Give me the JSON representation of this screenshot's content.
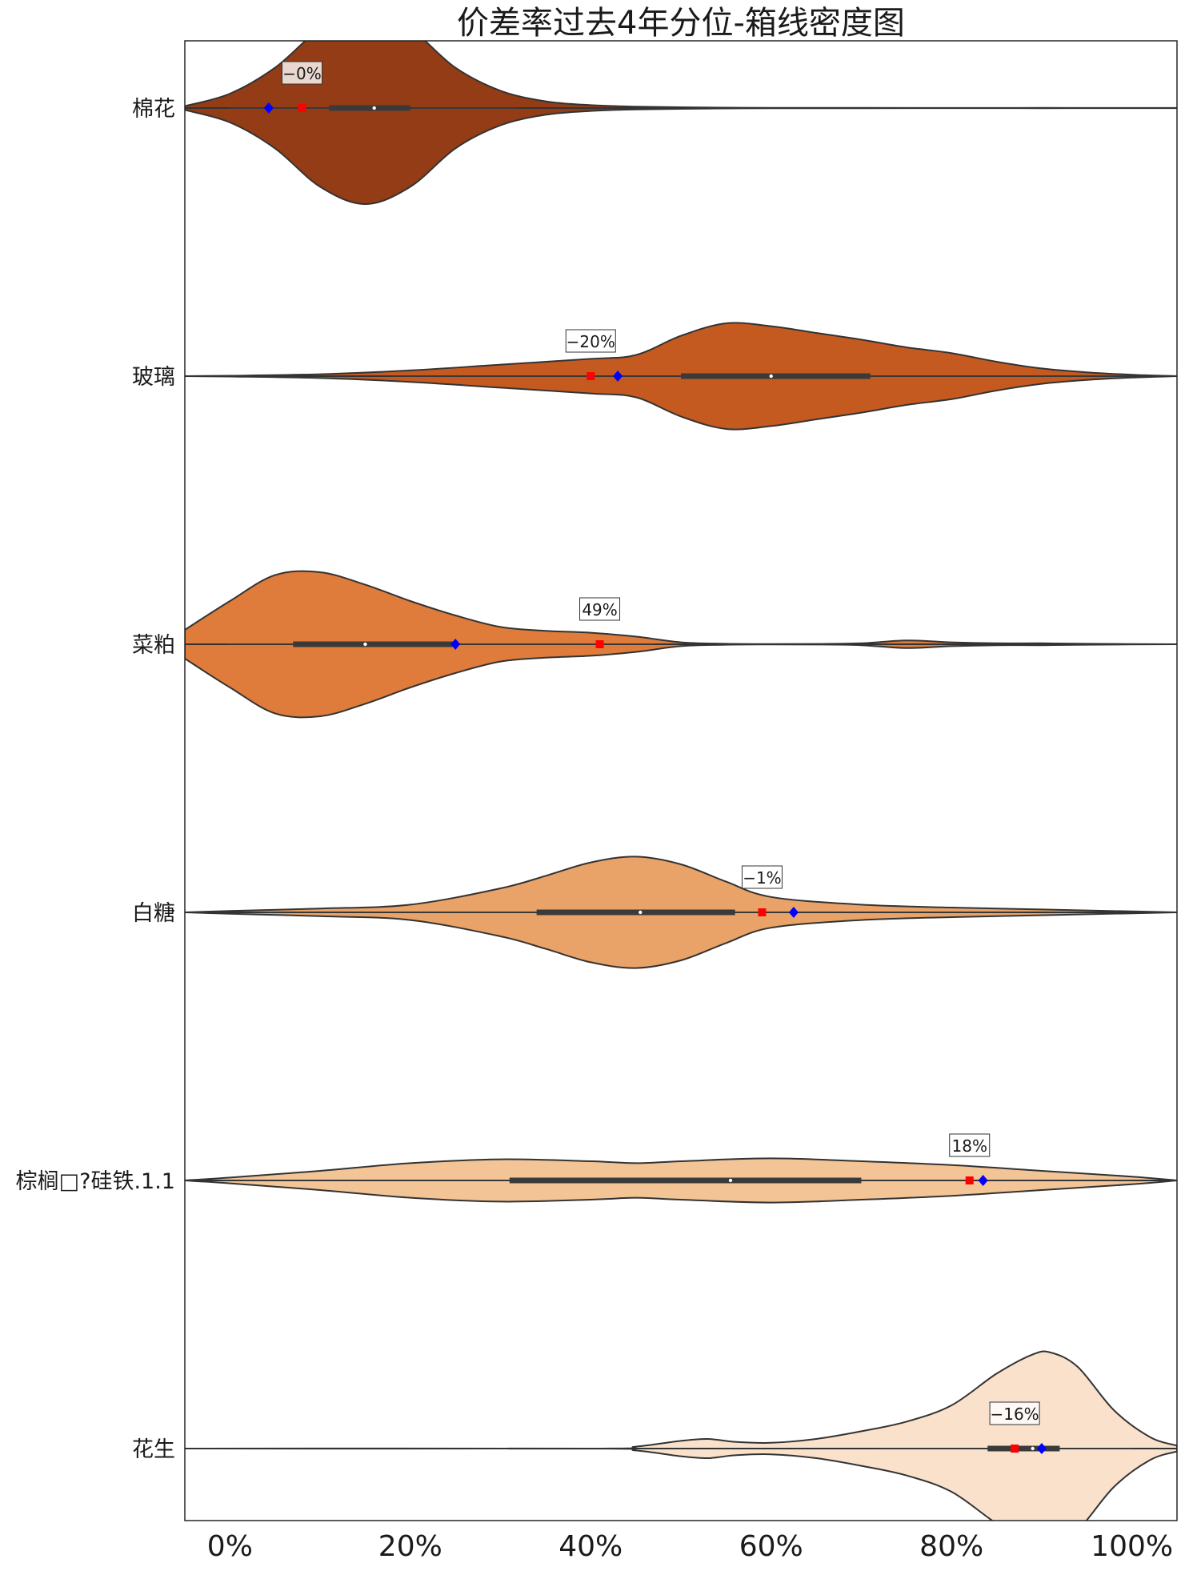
{
  "chart_data": {
    "type": "violin",
    "title": "价差率过去4年分位-箱线密度图",
    "xlabel": "",
    "ylabel": "",
    "xlim": [
      -0.05,
      1.05
    ],
    "x_ticks": [
      0,
      0.2,
      0.4,
      0.6,
      0.8,
      1.0
    ],
    "x_tick_labels": [
      "0%",
      "20%",
      "40%",
      "60%",
      "80%",
      "100%"
    ],
    "grid": false,
    "categories": [
      "棉花",
      "玻璃",
      "菜粕",
      "白糖",
      "棕榈□?硅铁.1.1",
      "花生"
    ],
    "series": [
      {
        "name": "棉花",
        "color": "#933c16",
        "density": [
          [
            -0.05,
            0.02
          ],
          [
            0.0,
            0.15
          ],
          [
            0.05,
            0.42
          ],
          [
            0.1,
            0.82
          ],
          [
            0.15,
            1.0
          ],
          [
            0.2,
            0.82
          ],
          [
            0.25,
            0.42
          ],
          [
            0.3,
            0.18
          ],
          [
            0.35,
            0.07
          ],
          [
            0.4,
            0.03
          ],
          [
            0.45,
            0.015
          ],
          [
            0.5,
            0.008
          ],
          [
            0.55,
            0.004
          ],
          [
            0.6,
            0.002
          ],
          [
            0.7,
            0.002
          ],
          [
            0.8,
            0.001
          ],
          [
            0.9,
            0.002
          ],
          [
            1.0,
            0.001
          ],
          [
            1.05,
            0.001
          ]
        ],
        "whisker": [
          0.0,
          0.32
        ],
        "box": [
          0.11,
          0.2
        ],
        "median": 0.16,
        "current": 0.08,
        "previous": 0.043,
        "annotation": "−0%"
      },
      {
        "name": "玻璃",
        "color": "#c45a20",
        "density": [
          [
            -0.05,
            0.0
          ],
          [
            0.0,
            0.004
          ],
          [
            0.1,
            0.02
          ],
          [
            0.2,
            0.06
          ],
          [
            0.3,
            0.12
          ],
          [
            0.4,
            0.18
          ],
          [
            0.45,
            0.22
          ],
          [
            0.5,
            0.42
          ],
          [
            0.55,
            0.55
          ],
          [
            0.6,
            0.52
          ],
          [
            0.65,
            0.45
          ],
          [
            0.7,
            0.38
          ],
          [
            0.75,
            0.3
          ],
          [
            0.8,
            0.24
          ],
          [
            0.85,
            0.15
          ],
          [
            0.9,
            0.08
          ],
          [
            0.95,
            0.04
          ],
          [
            1.0,
            0.015
          ],
          [
            1.05,
            0.0
          ]
        ],
        "whisker": [
          0.18,
          1.0
        ],
        "box": [
          0.5,
          0.71
        ],
        "median": 0.6,
        "current": 0.4,
        "previous": 0.43,
        "annotation": "−20%"
      },
      {
        "name": "菜粕",
        "color": "#df7c3b",
        "density": [
          [
            -0.05,
            0.15
          ],
          [
            0.0,
            0.45
          ],
          [
            0.05,
            0.72
          ],
          [
            0.1,
            0.75
          ],
          [
            0.15,
            0.62
          ],
          [
            0.2,
            0.45
          ],
          [
            0.25,
            0.3
          ],
          [
            0.3,
            0.18
          ],
          [
            0.35,
            0.14
          ],
          [
            0.4,
            0.12
          ],
          [
            0.45,
            0.08
          ],
          [
            0.5,
            0.02
          ],
          [
            0.55,
            0.005
          ],
          [
            0.6,
            0.002
          ],
          [
            0.65,
            0.003
          ],
          [
            0.7,
            0.01
          ],
          [
            0.75,
            0.04
          ],
          [
            0.8,
            0.02
          ],
          [
            0.85,
            0.01
          ],
          [
            0.9,
            0.01
          ],
          [
            0.95,
            0.005
          ],
          [
            1.05,
            0.0
          ]
        ],
        "whisker": [
          0.0,
          0.47
        ],
        "box": [
          0.07,
          0.25
        ],
        "median": 0.15,
        "current": 0.41,
        "previous": 0.25,
        "annotation": "49%"
      },
      {
        "name": "白糖",
        "color": "#e9a369",
        "density": [
          [
            -0.05,
            0.0
          ],
          [
            0.0,
            0.015
          ],
          [
            0.1,
            0.04
          ],
          [
            0.2,
            0.08
          ],
          [
            0.3,
            0.25
          ],
          [
            0.35,
            0.38
          ],
          [
            0.4,
            0.52
          ],
          [
            0.45,
            0.58
          ],
          [
            0.5,
            0.5
          ],
          [
            0.55,
            0.32
          ],
          [
            0.6,
            0.16
          ],
          [
            0.7,
            0.08
          ],
          [
            0.8,
            0.05
          ],
          [
            0.9,
            0.03
          ],
          [
            1.0,
            0.01
          ],
          [
            1.05,
            0.0
          ]
        ],
        "whisker": [
          0.025,
          0.88
        ],
        "box": [
          0.34,
          0.56
        ],
        "median": 0.455,
        "current": 0.59,
        "previous": 0.625,
        "annotation": "−1%"
      },
      {
        "name": "棕榈□?硅铁.1.1",
        "color": "#f2c496",
        "density": [
          [
            -0.05,
            0.0
          ],
          [
            0.0,
            0.03
          ],
          [
            0.1,
            0.1
          ],
          [
            0.2,
            0.18
          ],
          [
            0.3,
            0.22
          ],
          [
            0.4,
            0.2
          ],
          [
            0.45,
            0.18
          ],
          [
            0.5,
            0.2
          ],
          [
            0.6,
            0.23
          ],
          [
            0.7,
            0.2
          ],
          [
            0.8,
            0.16
          ],
          [
            0.9,
            0.1
          ],
          [
            1.0,
            0.04
          ],
          [
            1.05,
            0.0
          ]
        ],
        "whisker": [
          0.0,
          1.0
        ],
        "box": [
          0.31,
          0.7
        ],
        "median": 0.555,
        "current": 0.82,
        "previous": 0.835,
        "annotation": "18%"
      },
      {
        "name": "花生",
        "color": "#f9e1cc",
        "density": [
          [
            -0.05,
            0.0
          ],
          [
            0.4,
            0.0
          ],
          [
            0.45,
            0.02
          ],
          [
            0.5,
            0.08
          ],
          [
            0.53,
            0.1
          ],
          [
            0.56,
            0.07
          ],
          [
            0.6,
            0.06
          ],
          [
            0.65,
            0.1
          ],
          [
            0.7,
            0.18
          ],
          [
            0.75,
            0.28
          ],
          [
            0.8,
            0.45
          ],
          [
            0.85,
            0.78
          ],
          [
            0.89,
            0.98
          ],
          [
            0.91,
            1.0
          ],
          [
            0.94,
            0.85
          ],
          [
            0.98,
            0.4
          ],
          [
            1.02,
            0.12
          ],
          [
            1.05,
            0.03
          ]
        ],
        "whisker": [
          0.72,
          1.0
        ],
        "box": [
          0.84,
          0.92
        ],
        "median": 0.89,
        "current": 0.87,
        "previous": 0.9,
        "annotation": "−16%"
      }
    ]
  }
}
